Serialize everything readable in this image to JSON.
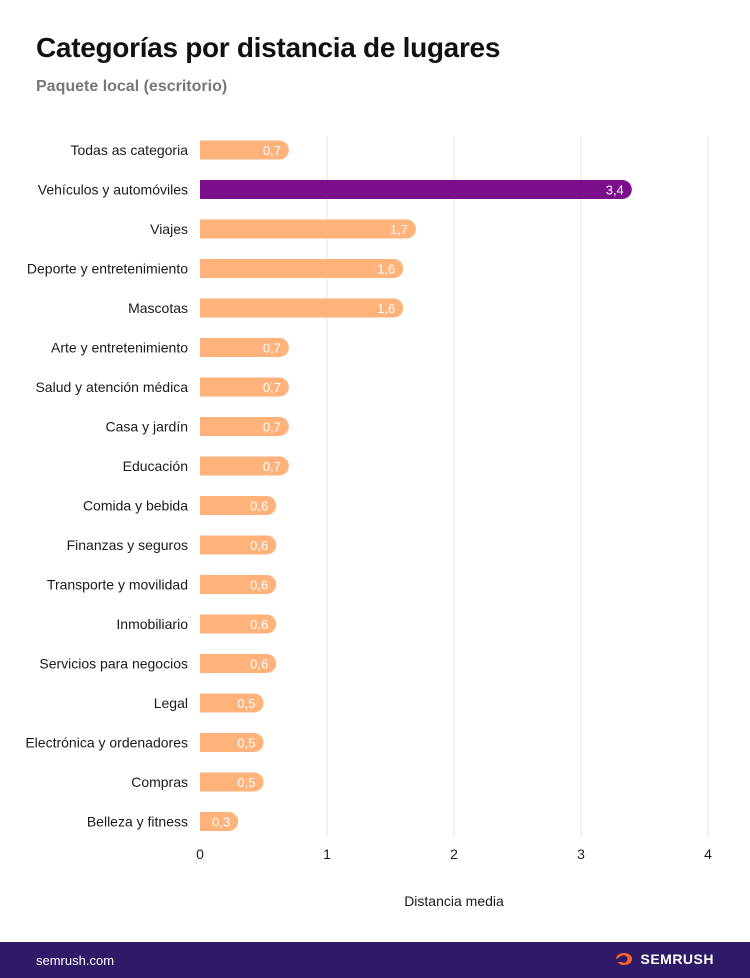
{
  "title": "Categorías por distancia de lugares",
  "subtitle": "Paquete local (escritorio)",
  "colors": {
    "default_bar": "#ffb27a",
    "highlight_bar": "#7b0e8a",
    "grid": "#e6e6e6",
    "footer_bg": "#2e1a66",
    "logo_accent": "#ff642d"
  },
  "chart_data": {
    "type": "bar",
    "orientation": "horizontal",
    "title": "Categorías por distancia de lugares",
    "subtitle": "Paquete local (escritorio)",
    "xlabel": "Distancia media",
    "ylabel": "",
    "xlim": [
      0,
      4
    ],
    "xticks": [
      "0",
      "1",
      "2",
      "3",
      "4"
    ],
    "grid": true,
    "highlight_category": "Vehículos y automóviles",
    "categories": [
      "Todas as categoria",
      "Vehículos y automóviles",
      "Viajes",
      "Deporte y entretenimiento",
      "Mascotas",
      "Arte y entretenimiento",
      "Salud y atención médica",
      "Casa y jardín",
      "Educación",
      "Comida y bebida",
      "Finanzas y seguros",
      "Transporte y movilidad",
      "Inmobiliario",
      "Servicios para negocios",
      "Legal",
      "Electrónica y ordenadores",
      "Compras",
      "Belleza y fitness"
    ],
    "values": [
      0.7,
      3.4,
      1.7,
      1.6,
      1.6,
      0.7,
      0.7,
      0.7,
      0.7,
      0.6,
      0.6,
      0.6,
      0.6,
      0.6,
      0.5,
      0.5,
      0.5,
      0.3
    ],
    "value_labels": [
      "0,7",
      "3,4",
      "1,7",
      "1,6",
      "1,6",
      "0,7",
      "0,7",
      "0,7",
      "0,7",
      "0,6",
      "0,6",
      "0,6",
      "0,6",
      "0,6",
      "0,5",
      "0,5",
      "0,5",
      "0,3"
    ]
  },
  "footer": {
    "url": "semrush.com",
    "brand": "SEMRUSH",
    "brand_icon": "semrush-fire-icon"
  }
}
